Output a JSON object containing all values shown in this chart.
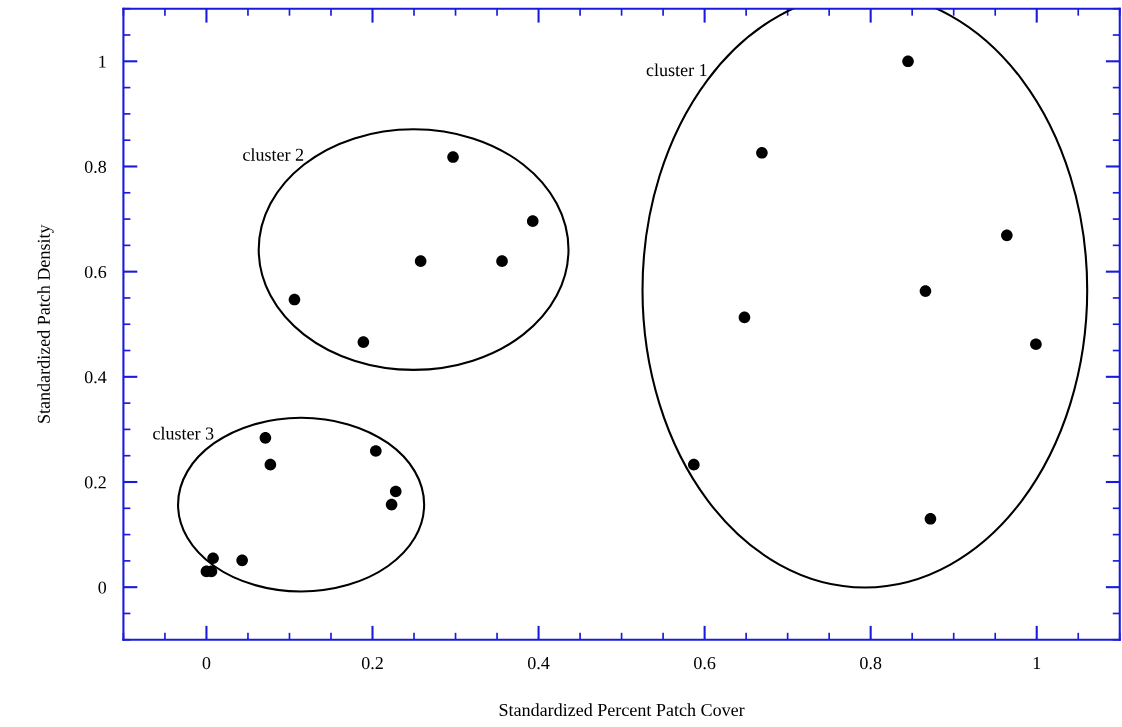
{
  "chart_data": {
    "type": "scatter",
    "xlabel": "Standardized Percent Patch Cover",
    "ylabel": "Standardized Patch Density",
    "xlim": [
      -0.1,
      1.1
    ],
    "ylim": [
      -0.1,
      1.1
    ],
    "xticks": [
      0,
      0.2,
      0.4,
      0.6,
      0.8,
      1
    ],
    "yticks": [
      0,
      0.2,
      0.4,
      0.6,
      0.8,
      1
    ],
    "annotations": [
      "cluster 1",
      "cluster 2",
      "cluster 3"
    ],
    "grid": false,
    "legend": false,
    "marker": "circle",
    "series": [
      {
        "color": "#000000",
        "x": [
          0.845,
          0.669,
          0.964,
          0.866,
          0.648,
          0.999,
          0.587,
          0.872
        ],
        "values": [
          1.0,
          0.826,
          0.669,
          0.563,
          0.513,
          0.462,
          0.233,
          0.13
        ]
      },
      {
        "color": "#000000",
        "x": [
          0.297,
          0.393,
          0.258,
          0.356,
          0.106,
          0.189
        ],
        "values": [
          0.818,
          0.696,
          0.62,
          0.62,
          0.547,
          0.466
        ]
      },
      {
        "color": "#000000",
        "x": [
          0.071,
          0.077,
          0.204,
          0.228,
          0.223,
          0.008,
          0.043,
          0.0,
          0.006
        ],
        "values": [
          0.284,
          0.233,
          0.259,
          0.182,
          0.157,
          0.055,
          0.051,
          0.03,
          0.03
        ]
      }
    ]
  }
}
